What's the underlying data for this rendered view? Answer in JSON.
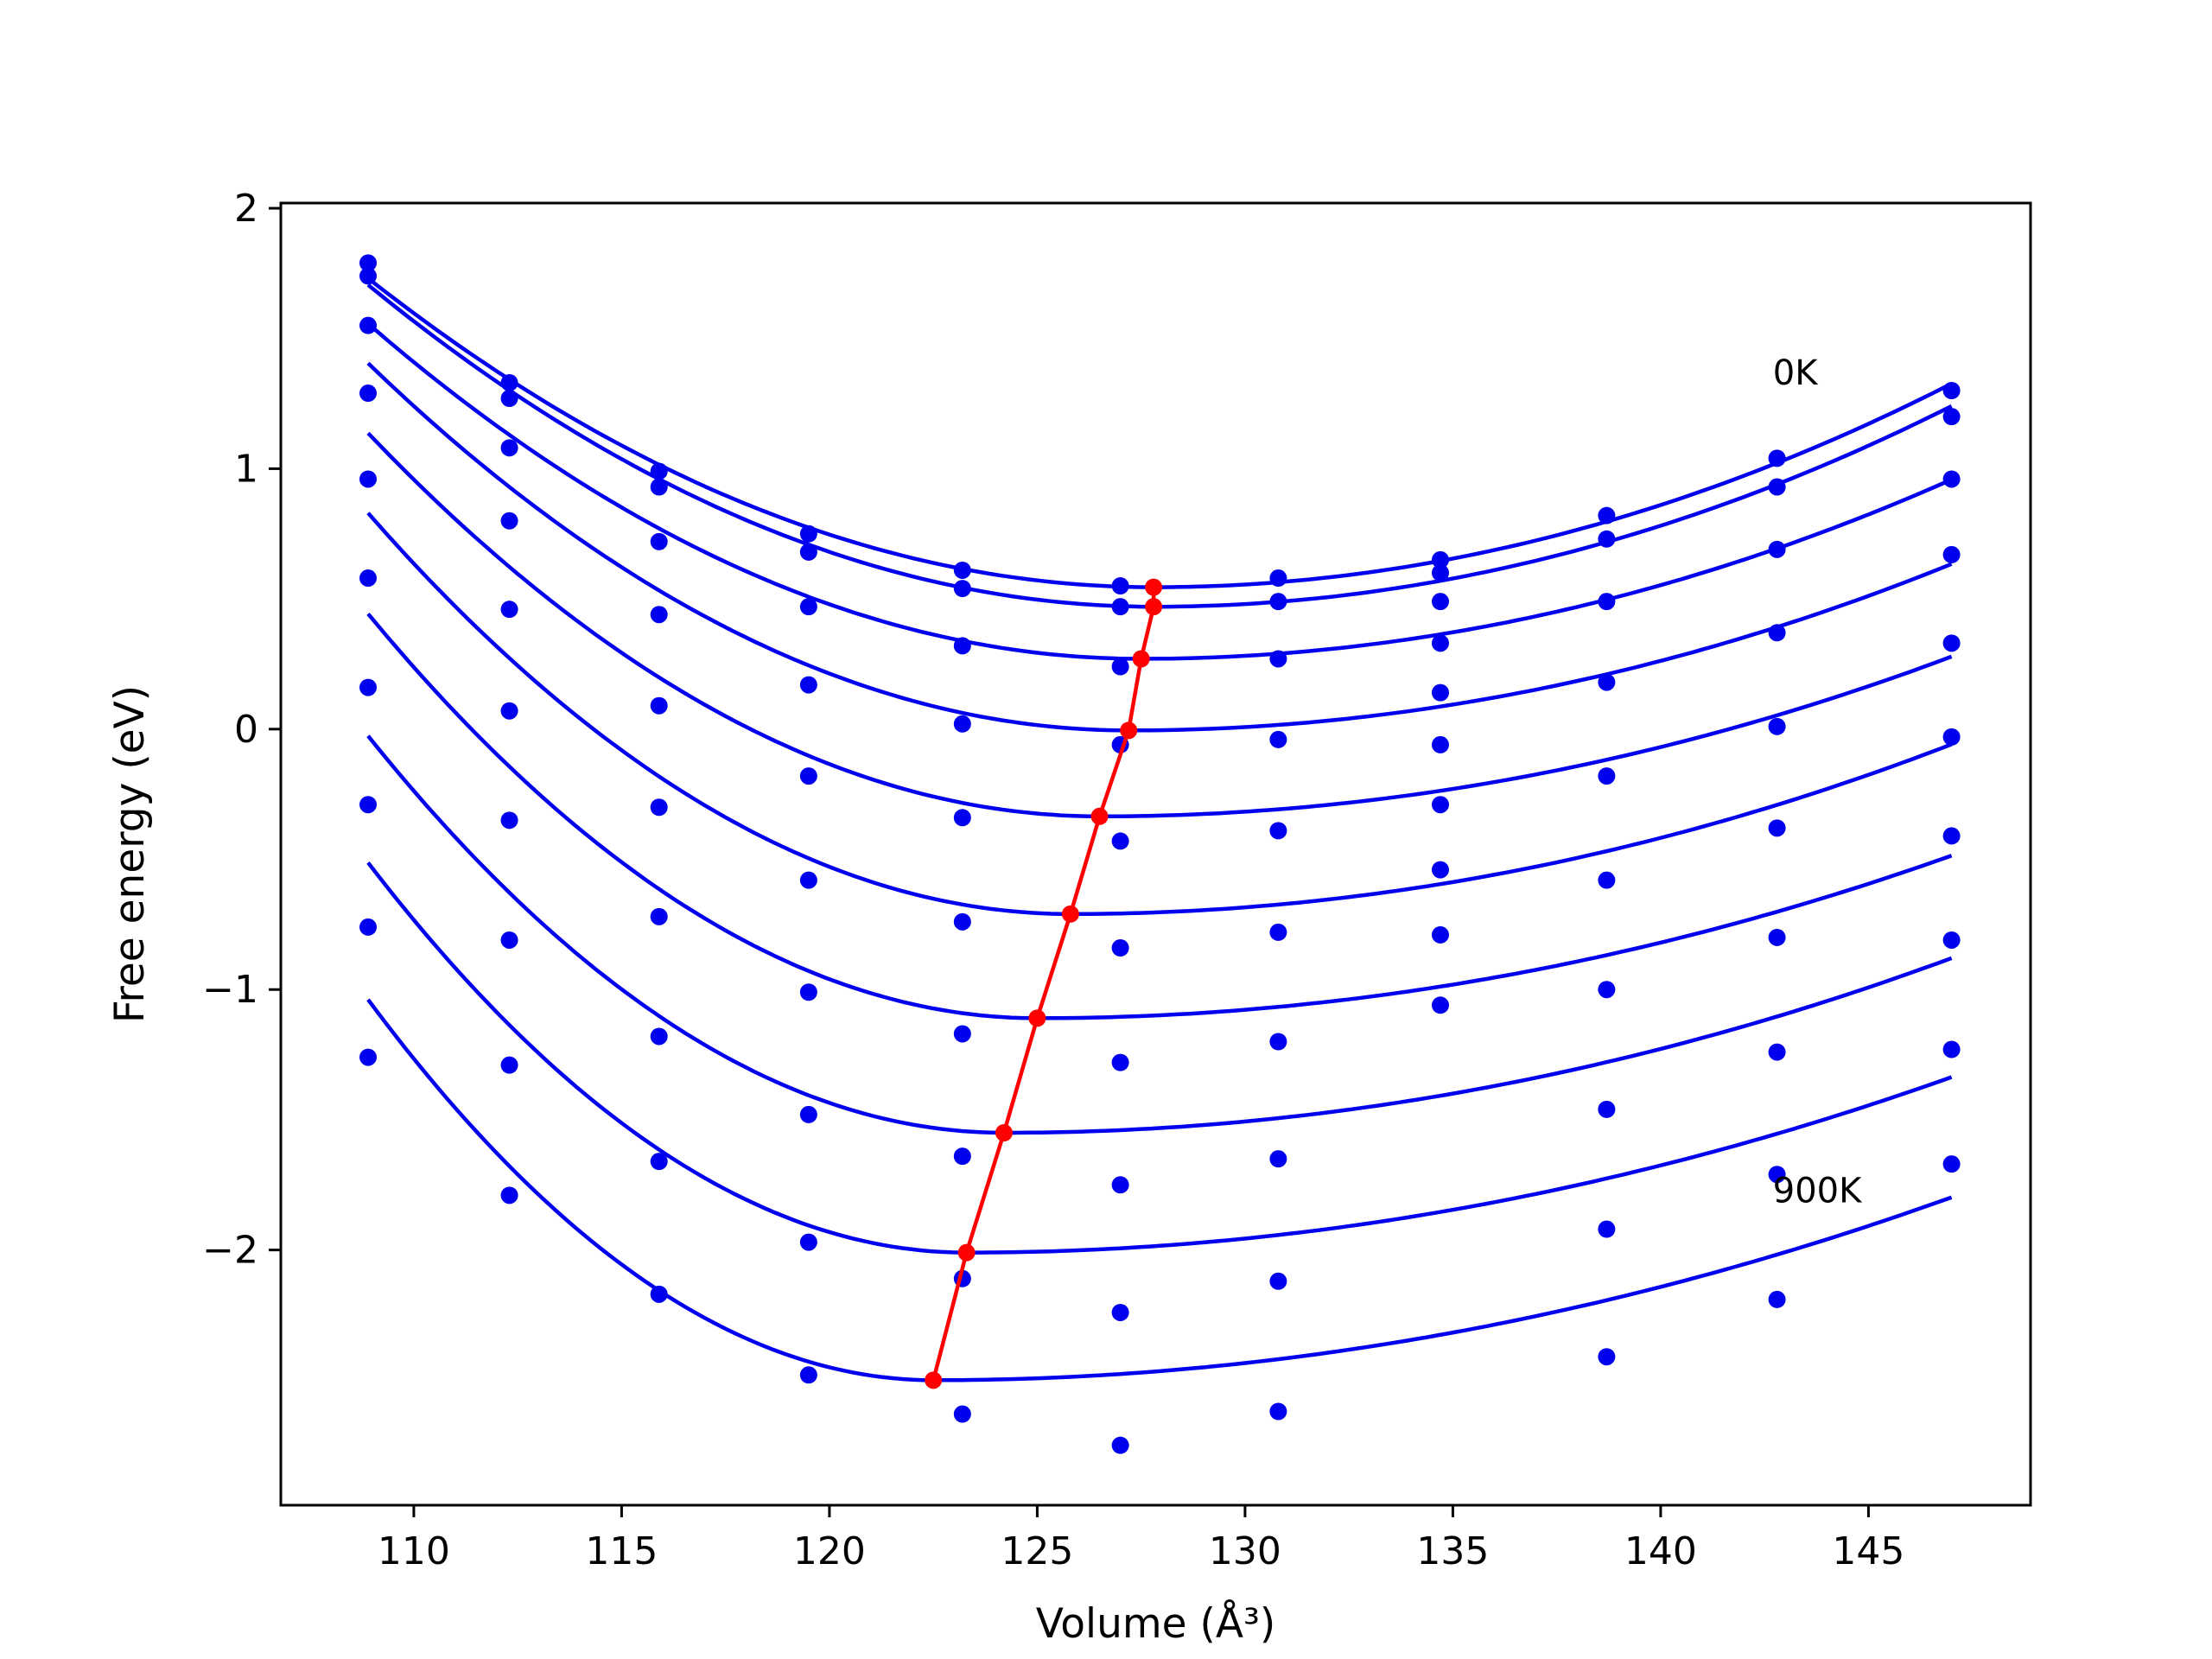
{
  "chart_data": {
    "type": "line",
    "title": "",
    "xlabel": "Volume (Å³)",
    "ylabel": "Free energy (eV)",
    "xlim": [
      106.8,
      148.9
    ],
    "ylim": [
      -2.98,
      2.02
    ],
    "xticks": [
      110,
      115,
      120,
      125,
      130,
      135,
      140,
      145
    ],
    "yticks": [
      -2,
      -1,
      0,
      1,
      2
    ],
    "xtick_labels": [
      "110",
      "115",
      "120",
      "125",
      "130",
      "135",
      "140",
      "145"
    ],
    "ytick_labels": [
      "−2",
      "−1",
      "0",
      "1",
      "2"
    ],
    "grid": false,
    "legend": "none",
    "annotations": [
      {
        "text": "0K",
        "x": 142.7,
        "y": 1.37
      },
      {
        "text": "900K",
        "x": 142.7,
        "y": -1.77
      }
    ],
    "colors": {
      "curves": "#0000ee",
      "points": "#0000ee",
      "minimum_path": "#ff0000"
    },
    "volumes": [
      108.9,
      112.3,
      115.9,
      119.5,
      123.2,
      127.0,
      130.8,
      134.7,
      138.7,
      142.8,
      147.0
    ],
    "series": [
      {
        "points": [
          1.79,
          1.33,
          0.99,
          0.75,
          0.61,
          0.55,
          0.58,
          0.65,
          0.82,
          1.04,
          1.3
        ],
        "fit": {
          "v0": 127.8,
          "e0": 0.545,
          "cl": 0.00332,
          "cr": 0.00212
        }
      },
      {
        "points": [
          1.74,
          1.27,
          0.93,
          0.68,
          0.54,
          0.47,
          0.49,
          0.6,
          0.73,
          0.93,
          1.2
        ],
        "fit": {
          "v0": 127.8,
          "e0": 0.47,
          "cl": 0.00346,
          "cr": 0.00209
        }
      },
      {
        "points": [
          1.55,
          1.08,
          0.72,
          0.47,
          0.32,
          0.24,
          0.27,
          0.49,
          0.49,
          0.69,
          0.96
        ],
        "fit": {
          "v0": 127.5,
          "e0": 0.27,
          "cl": 0.00372,
          "cr": 0.00181
        }
      },
      {
        "points": [
          1.29,
          0.8,
          0.44,
          0.17,
          0.02,
          -0.06,
          -0.04,
          0.33,
          0.18,
          0.37,
          0.67
        ],
        "fit": {
          "v0": 127.2,
          "e0": -0.005,
          "cl": 0.00421,
          "cr": 0.00163
        }
      },
      {
        "points": [
          0.96,
          0.46,
          0.09,
          -0.18,
          -0.34,
          -0.43,
          -0.39,
          0.14,
          -0.18,
          0.01,
          0.33
        ],
        "fit": {
          "v0": 126.5,
          "e0": -0.335,
          "cl": 0.00475,
          "cr": 0.00146
        }
      },
      {
        "points": [
          0.58,
          0.07,
          -0.3,
          -0.58,
          -0.74,
          -0.84,
          -0.78,
          -0.06,
          -0.58,
          -0.38,
          -0.03
        ],
        "fit": {
          "v0": 125.8,
          "e0": -0.71,
          "cl": 0.00539,
          "cr": 0.00145
        }
      },
      {
        "points": [
          0.16,
          -0.35,
          -0.72,
          -1.01,
          -1.17,
          -1.28,
          -1.2,
          -0.29,
          -1.0,
          -0.8,
          -0.41
        ],
        "fit": {
          "v0": 125.0,
          "e0": -1.11,
          "cl": 0.00599,
          "cr": 0.00129
        }
      },
      {
        "points": [
          -0.29,
          -0.81,
          -1.18,
          -1.48,
          -1.64,
          -1.75,
          -1.65,
          -0.54,
          -1.46,
          -1.24,
          -0.81
        ],
        "fit": {
          "v0": 124.2,
          "e0": -1.55,
          "cl": 0.00651,
          "cr": 0.00129
        }
      },
      {
        "points": [
          -0.76,
          -1.29,
          -1.66,
          -1.97,
          -2.11,
          -2.24,
          -2.12,
          -0.79,
          -1.92,
          -1.71,
          -1.23
        ],
        "fit": {
          "v0": 123.3,
          "e0": -2.01,
          "cl": 0.00722,
          "cr": 0.0012
        }
      },
      {
        "points": [
          -1.26,
          -1.79,
          -2.17,
          -2.48,
          -2.63,
          -2.75,
          -2.62,
          -1.06,
          -2.41,
          -2.19,
          -1.67
        ],
        "fit": {
          "v0": 122.5,
          "e0": -2.5,
          "cl": 0.0079,
          "cr": 0.00117
        }
      }
    ],
    "minimum_path": {
      "x": [
        127.8,
        127.8,
        127.5,
        127.2,
        126.5,
        125.8,
        125.0,
        124.2,
        123.3,
        122.5
      ],
      "y": [
        0.545,
        0.47,
        0.27,
        -0.005,
        -0.335,
        -0.71,
        -1.11,
        -1.55,
        -2.01,
        -2.5
      ]
    }
  }
}
